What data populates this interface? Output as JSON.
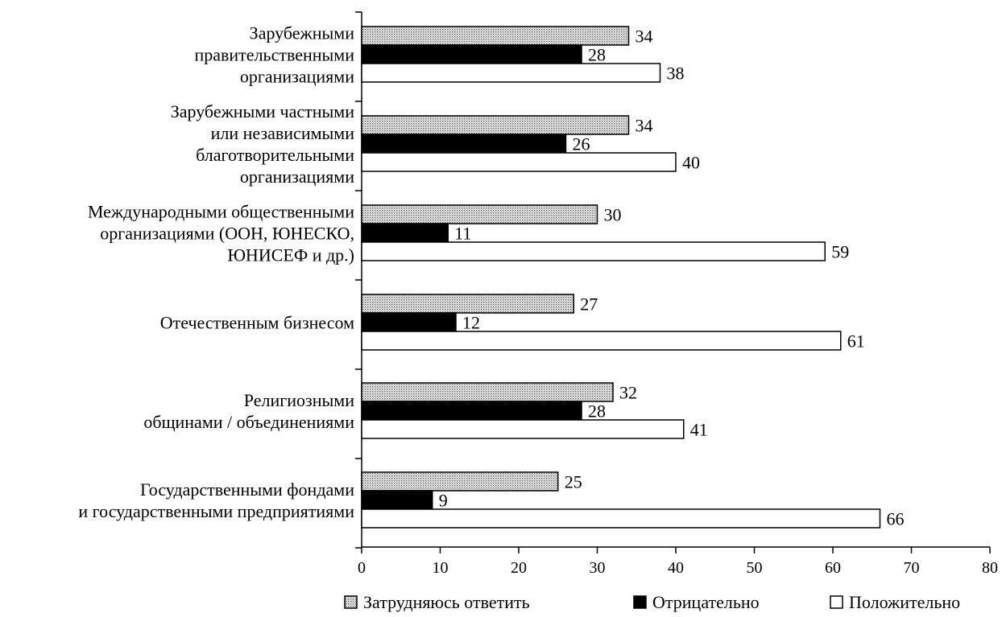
{
  "chart_data": {
    "type": "bar",
    "orientation": "horizontal",
    "categories": [
      [
        "Зарубежными",
        "правительственными",
        "организациями"
      ],
      [
        "Зарубежными частными",
        "или независимыми",
        "благотворительными",
        "организациями"
      ],
      [
        "Международными общественными",
        "организациями (ООН, ЮНЕСКО,",
        "ЮНИСЕФ и др.)"
      ],
      [
        "Отечественным бизнесом"
      ],
      [
        "Религиозными",
        "общинами / объединениями"
      ],
      [
        "Государственными фондами",
        "и государственными предприятиями"
      ]
    ],
    "series": [
      {
        "name": "Затрудняюсь ответить",
        "values": [
          34,
          34,
          30,
          27,
          32,
          25
        ],
        "fill": "dotted"
      },
      {
        "name": "Отрицательно",
        "values": [
          28,
          26,
          11,
          12,
          28,
          9
        ],
        "fill": "#000000"
      },
      {
        "name": "Положительно",
        "values": [
          38,
          40,
          59,
          61,
          41,
          66
        ],
        "fill": "#ffffff"
      }
    ],
    "xlim": [
      0,
      80
    ],
    "xticks": [
      0,
      10,
      20,
      30,
      40,
      50,
      60,
      70,
      80
    ],
    "grid": false,
    "legend_position": "bottom"
  }
}
